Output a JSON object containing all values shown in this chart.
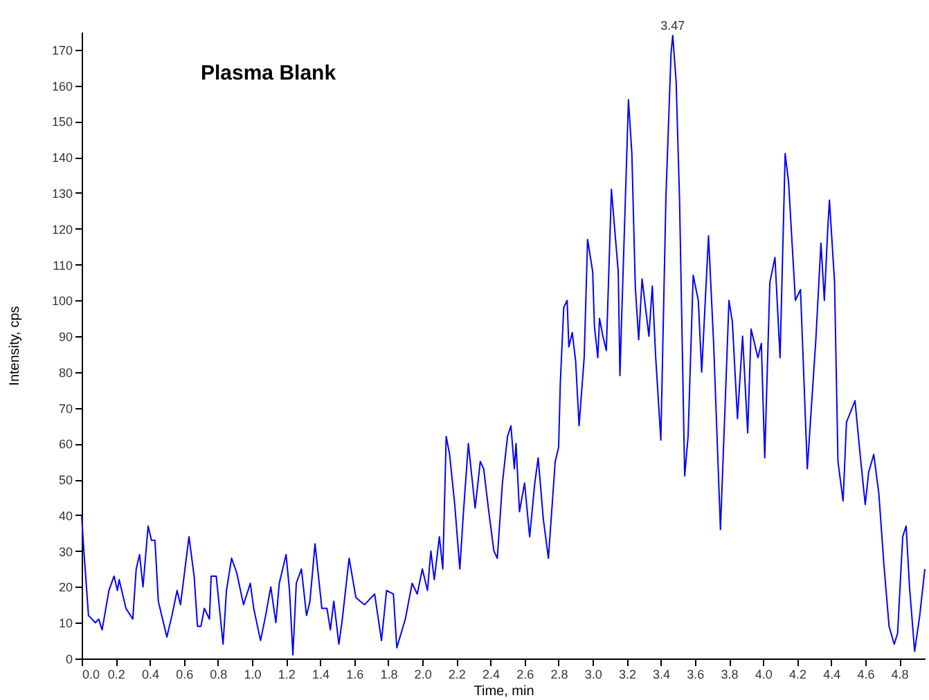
{
  "chart_data": {
    "type": "line",
    "title": "Plasma Blank",
    "xlabel": "Time, min",
    "ylabel": "Intensity, cps",
    "x": [
      0,
      0.01,
      0.04,
      0.08,
      0.1,
      0.12,
      0.16,
      0.19,
      0.21,
      0.22,
      0.26,
      0.3,
      0.32,
      0.34,
      0.36,
      0.39,
      0.41,
      0.43,
      0.45,
      0.5,
      0.53,
      0.56,
      0.58,
      0.63,
      0.66,
      0.68,
      0.7,
      0.72,
      0.75,
      0.76,
      0.79,
      0.83,
      0.85,
      0.88,
      0.91,
      0.95,
      0.99,
      1.01,
      1.05,
      1.08,
      1.11,
      1.14,
      1.16,
      1.2,
      1.22,
      1.24,
      1.26,
      1.29,
      1.32,
      1.34,
      1.37,
      1.41,
      1.44,
      1.46,
      1.48,
      1.51,
      1.53,
      1.57,
      1.61,
      1.66,
      1.72,
      1.76,
      1.79,
      1.83,
      1.85,
      1.9,
      1.94,
      1.97,
      2.0,
      2.03,
      2.05,
      2.07,
      2.1,
      2.12,
      2.14,
      2.16,
      2.19,
      2.22,
      2.24,
      2.27,
      2.31,
      2.34,
      2.36,
      2.39,
      2.42,
      2.44,
      2.47,
      2.5,
      2.52,
      2.54,
      2.55,
      2.57,
      2.6,
      2.63,
      2.66,
      2.68,
      2.71,
      2.74,
      2.78,
      2.8,
      2.81,
      2.83,
      2.85,
      2.86,
      2.88,
      2.9,
      2.92,
      2.95,
      2.97,
      3.0,
      3.01,
      3.03,
      3.04,
      3.06,
      3.08,
      3.11,
      3.15,
      3.16,
      3.17,
      3.21,
      3.23,
      3.25,
      3.27,
      3.29,
      3.33,
      3.35,
      3.37,
      3.4,
      3.43,
      3.46,
      3.47,
      3.49,
      3.51,
      3.54,
      3.56,
      3.59,
      3.62,
      3.64,
      3.68,
      3.71,
      3.75,
      3.78,
      3.8,
      3.82,
      3.85,
      3.88,
      3.91,
      3.93,
      3.97,
      3.99,
      4.01,
      4.04,
      4.07,
      4.1,
      4.13,
      4.15,
      4.19,
      4.22,
      4.26,
      4.31,
      4.34,
      4.36,
      4.38,
      4.39,
      4.42,
      4.44,
      4.47,
      4.49,
      4.54,
      4.57,
      4.6,
      4.62,
      4.65,
      4.68,
      4.71,
      4.74,
      4.77,
      4.79,
      4.82,
      4.84,
      4.86,
      4.89,
      4.92,
      4.95
    ],
    "series": [
      {
        "color": "#0000ff",
        "values": [
          40,
          32,
          12,
          10,
          11,
          8,
          19,
          23,
          19,
          22,
          14,
          11,
          25,
          29,
          20,
          37,
          33,
          33,
          16,
          6,
          12,
          19,
          15,
          34,
          23,
          9,
          9,
          14,
          11,
          23,
          23,
          4,
          19,
          28,
          24,
          15,
          21,
          14,
          5,
          12,
          20,
          10,
          21,
          29,
          19,
          1,
          21,
          25,
          12,
          16,
          32,
          14,
          14,
          8,
          16,
          4,
          11,
          28,
          17,
          15,
          18,
          5,
          19,
          18,
          3,
          11,
          21,
          18,
          25,
          19,
          30,
          22,
          34,
          25,
          62,
          57,
          43,
          25,
          40,
          60,
          42,
          55,
          53,
          41,
          30,
          28,
          49,
          62,
          65,
          53,
          60,
          41,
          49,
          34,
          49,
          56,
          39,
          28,
          55,
          59,
          77,
          98,
          100,
          87,
          91,
          83,
          65,
          84,
          117,
          108,
          93,
          84,
          95,
          90,
          86,
          131,
          108,
          79,
          95,
          156,
          141,
          104,
          89,
          106,
          90,
          104,
          84,
          61,
          129,
          169,
          174,
          161,
          128,
          51,
          62,
          107,
          100,
          80,
          118,
          88,
          36,
          74,
          100,
          94,
          67,
          90,
          63,
          92,
          84,
          88,
          56,
          105,
          112,
          84,
          141,
          133,
          100,
          103,
          53,
          89,
          116,
          100,
          120,
          128,
          105,
          55,
          44,
          66,
          72,
          57,
          43,
          52,
          57,
          46,
          26,
          9,
          4,
          7,
          34,
          37,
          20,
          2,
          12,
          25
        ]
      }
    ],
    "xlim": [
      0,
      4.95
    ],
    "ylim": [
      0,
      175
    ],
    "xticks": [
      {
        "value": 0,
        "label": "0.0"
      },
      {
        "value": 0.2,
        "label": "0.2"
      },
      {
        "value": 0.4,
        "label": "0.4"
      },
      {
        "value": 0.6,
        "label": "0.6"
      },
      {
        "value": 0.8,
        "label": "0.8"
      },
      {
        "value": 1,
        "label": "1.0"
      },
      {
        "value": 1.2,
        "label": "1.2"
      },
      {
        "value": 1.4,
        "label": "1.4"
      },
      {
        "value": 1.6,
        "label": "1.6"
      },
      {
        "value": 1.8,
        "label": "1.8"
      },
      {
        "value": 2,
        "label": "2.0"
      },
      {
        "value": 2.2,
        "label": "2.2"
      },
      {
        "value": 2.4,
        "label": "2.4"
      },
      {
        "value": 2.6,
        "label": "2.6"
      },
      {
        "value": 2.8,
        "label": "2.8"
      },
      {
        "value": 3,
        "label": "3.0"
      },
      {
        "value": 3.2,
        "label": "3.2"
      },
      {
        "value": 3.4,
        "label": "3.4"
      },
      {
        "value": 3.6,
        "label": "3.6"
      },
      {
        "value": 3.8,
        "label": "3.8"
      },
      {
        "value": 4,
        "label": "4.0"
      },
      {
        "value": 4.2,
        "label": "4.2"
      },
      {
        "value": 4.4,
        "label": "4.4"
      },
      {
        "value": 4.6,
        "label": "4.6"
      },
      {
        "value": 4.8,
        "label": "4.8"
      }
    ],
    "yticks": [
      0,
      10,
      20,
      30,
      40,
      50,
      60,
      70,
      80,
      90,
      100,
      110,
      120,
      130,
      140,
      150,
      160,
      170
    ],
    "annotations": [
      {
        "text": "3.47",
        "x": 3.47,
        "y": 174
      }
    ],
    "grid": false,
    "marker": "none",
    "line_style": "solid"
  }
}
